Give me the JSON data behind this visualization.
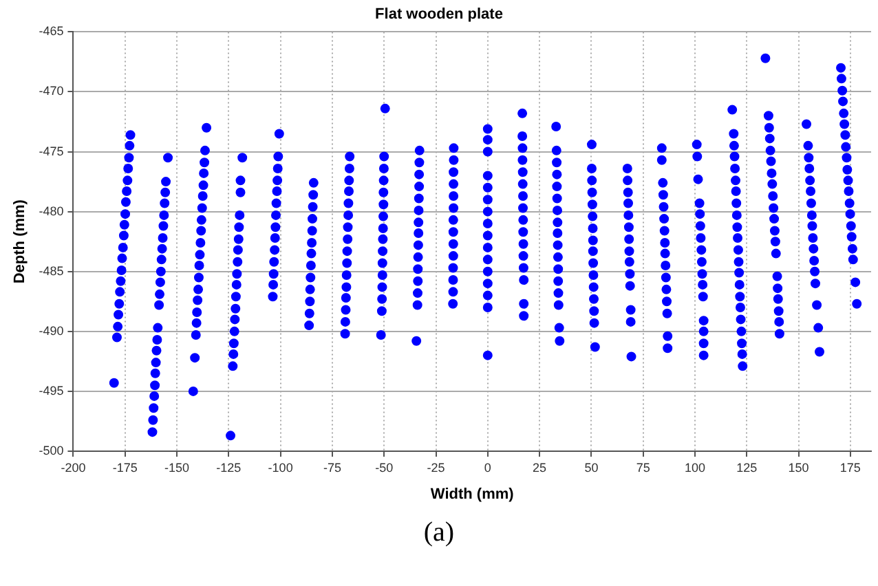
{
  "chart_data": {
    "type": "scatter",
    "title": "Flat wooden plate",
    "xlabel": "Width (mm)",
    "ylabel": "Depth (mm)",
    "annotations": [
      "(a)"
    ],
    "xlim": [
      -200,
      185
    ],
    "ylim": [
      -500,
      -465
    ],
    "xticks": [
      -200,
      -175,
      -150,
      -125,
      -100,
      -75,
      -50,
      -25,
      0,
      25,
      50,
      75,
      100,
      125,
      150,
      175
    ],
    "yticks": [
      -500,
      -495,
      -490,
      -485,
      -480,
      -475,
      -470,
      -465
    ],
    "grid": true,
    "marker": "circle",
    "series": [
      {
        "color": "#0000ff",
        "x": [
          -172.4,
          -172.8,
          -173.1,
          -173.5,
          -173.8,
          -174.2,
          -174.6,
          -174.9,
          -175.3,
          -175.6,
          -176.0,
          -176.4,
          -176.7,
          -177.1,
          -177.5,
          -177.8,
          -178.2,
          -178.5,
          -178.9,
          -180.3,
          -154.3,
          -155.3,
          -155.6,
          -155.9,
          -156.2,
          -156.5,
          -156.8,
          -157.1,
          -157.4,
          -157.7,
          -158.0,
          -158.3,
          -158.6,
          -159.2,
          -159.5,
          -159.8,
          -160.1,
          -160.4,
          -160.6,
          -160.9,
          -161.2,
          -161.5,
          -161.8,
          -135.7,
          -136.4,
          -136.7,
          -137.0,
          -137.2,
          -137.5,
          -137.8,
          -138.1,
          -138.3,
          -138.6,
          -138.9,
          -139.2,
          -139.4,
          -139.7,
          -140.0,
          -140.3,
          -140.5,
          -140.8,
          -141.3,
          -142.1,
          -118.4,
          -119.3,
          -119.3,
          -119.7,
          -120.0,
          -120.2,
          -120.5,
          -120.7,
          -121.0,
          -121.2,
          -121.5,
          -121.7,
          -122.0,
          -122.2,
          -122.5,
          -122.7,
          -123.0,
          -124.1,
          -100.6,
          -101.1,
          -101.3,
          -101.5,
          -101.7,
          -102.0,
          -102.2,
          -102.4,
          -102.6,
          -102.8,
          -103.1,
          -103.3,
          -103.5,
          -103.7,
          -84.0,
          -84.2,
          -84.4,
          -84.6,
          -84.7,
          -84.9,
          -85.1,
          -85.3,
          -85.5,
          -85.7,
          -85.8,
          -86.0,
          -86.2,
          -66.6,
          -66.7,
          -66.9,
          -67.0,
          -67.2,
          -67.3,
          -67.5,
          -67.6,
          -67.8,
          -67.9,
          -68.1,
          -68.2,
          -68.4,
          -68.5,
          -68.7,
          -68.8,
          -49.5,
          -50.0,
          -50.1,
          -50.2,
          -50.3,
          -50.3,
          -50.4,
          -50.5,
          -50.6,
          -50.7,
          -50.8,
          -50.8,
          -50.9,
          -51.0,
          -51.1,
          -51.5,
          -32.9,
          -33.0,
          -33.1,
          -33.1,
          -33.2,
          -33.3,
          -33.4,
          -33.4,
          -33.5,
          -33.6,
          -33.7,
          -33.7,
          -33.8,
          -33.9,
          -34.4,
          -16.4,
          -16.4,
          -16.5,
          -16.5,
          -16.5,
          -16.5,
          -16.6,
          -16.6,
          -16.6,
          -16.6,
          -16.7,
          -16.7,
          -16.7,
          -16.8,
          0,
          0,
          0,
          0,
          0,
          0,
          0,
          0,
          0,
          0,
          0,
          0,
          0,
          0,
          0,
          0,
          16.7,
          16.7,
          16.8,
          16.8,
          16.9,
          16.9,
          17.0,
          17.0,
          17.1,
          17.1,
          17.2,
          17.2,
          17.3,
          17.4,
          17.4,
          17.4,
          33.0,
          33.2,
          33.3,
          33.4,
          33.4,
          33.5,
          33.6,
          33.7,
          33.7,
          33.8,
          33.9,
          34.0,
          34.0,
          34.1,
          34.2,
          34.5,
          34.7,
          50.2,
          50.2,
          50.3,
          50.4,
          50.5,
          50.6,
          50.7,
          50.8,
          50.8,
          50.9,
          51.0,
          51.1,
          51.2,
          51.3,
          51.4,
          51.8,
          67.4,
          67.5,
          67.7,
          67.8,
          67.9,
          68.1,
          68.2,
          68.3,
          68.4,
          68.6,
          68.7,
          69.0,
          69.0,
          69.3,
          84.0,
          84.0,
          84.5,
          84.7,
          84.9,
          85.1,
          85.3,
          85.5,
          85.6,
          85.8,
          86.0,
          86.2,
          86.4,
          86.6,
          86.8,
          86.8,
          100.9,
          101.1,
          101.5,
          102.2,
          102.4,
          102.6,
          102.8,
          103.1,
          103.3,
          103.5,
          103.7,
          103.9,
          104.2,
          104.2,
          104.2,
          104.2,
          118.0,
          118.7,
          118.9,
          119.1,
          119.3,
          119.6,
          119.8,
          120.0,
          120.2,
          120.4,
          120.6,
          120.9,
          121.1,
          121.3,
          121.5,
          121.7,
          121.9,
          122.1,
          122.4,
          122.6,
          122.8,
          123.0,
          134.0,
          135.5,
          135.8,
          136.1,
          136.4,
          136.7,
          137.0,
          137.3,
          137.6,
          137.9,
          138.2,
          138.5,
          138.8,
          139.1,
          139.7,
          139.9,
          140.1,
          140.4,
          140.6,
          140.8,
          153.8,
          154.6,
          154.9,
          155.2,
          155.5,
          155.8,
          156.1,
          156.4,
          156.6,
          156.9,
          157.2,
          157.5,
          157.8,
          158.1,
          158.8,
          159.5,
          160.1,
          170.4,
          170.7,
          171.1,
          171.4,
          171.8,
          172.1,
          172.5,
          172.8,
          173.2,
          173.5,
          173.9,
          174.2,
          174.6,
          174.9,
          175.3,
          175.6,
          176.0,
          176.3,
          177.4,
          178.1
        ],
        "values": [
          -473.6,
          -474.5,
          -475.5,
          -476.4,
          -477.4,
          -478.3,
          -479.2,
          -480.2,
          -481.1,
          -482.0,
          -483.0,
          -483.9,
          -484.9,
          -485.8,
          -486.7,
          -487.7,
          -488.6,
          -489.6,
          -490.5,
          -494.3,
          -475.5,
          -477.5,
          -478.4,
          -479.3,
          -480.3,
          -481.2,
          -482.2,
          -483.1,
          -484.0,
          -485.0,
          -485.9,
          -486.9,
          -487.8,
          -489.7,
          -490.7,
          -491.6,
          -492.6,
          -493.5,
          -494.5,
          -495.4,
          -496.4,
          -497.4,
          -498.4,
          -473.0,
          -474.9,
          -475.9,
          -476.8,
          -477.8,
          -478.7,
          -479.7,
          -480.7,
          -481.6,
          -482.6,
          -483.6,
          -484.5,
          -485.5,
          -486.5,
          -487.4,
          -488.4,
          -489.3,
          -490.3,
          -492.2,
          -495.0,
          -475.5,
          -477.4,
          -478.4,
          -480.3,
          -481.3,
          -482.3,
          -483.2,
          -484.2,
          -485.2,
          -486.1,
          -487.1,
          -488.1,
          -489.0,
          -490.0,
          -491.0,
          -491.9,
          -492.9,
          -498.7,
          -473.5,
          -475.4,
          -476.4,
          -477.4,
          -478.3,
          -479.3,
          -480.3,
          -481.3,
          -482.2,
          -483.2,
          -484.2,
          -485.2,
          -486.1,
          -487.1,
          -477.6,
          -478.6,
          -479.6,
          -480.6,
          -481.6,
          -482.6,
          -483.5,
          -484.5,
          -485.5,
          -486.5,
          -487.5,
          -488.5,
          -489.5,
          -475.4,
          -476.4,
          -477.4,
          -478.3,
          -479.3,
          -480.3,
          -481.3,
          -482.3,
          -483.3,
          -484.3,
          -485.3,
          -486.3,
          -487.2,
          -488.2,
          -489.2,
          -490.2,
          -471.4,
          -475.4,
          -476.4,
          -477.4,
          -478.4,
          -479.4,
          -480.4,
          -481.4,
          -482.3,
          -483.3,
          -484.3,
          -485.3,
          -486.3,
          -487.3,
          -488.3,
          -490.3,
          -474.9,
          -475.9,
          -476.9,
          -477.9,
          -478.9,
          -479.9,
          -480.9,
          -481.8,
          -482.8,
          -483.8,
          -484.8,
          -485.8,
          -486.8,
          -487.8,
          -490.8,
          -474.7,
          -475.7,
          -476.7,
          -477.7,
          -478.7,
          -479.7,
          -480.7,
          -481.7,
          -482.7,
          -483.7,
          -484.7,
          -485.7,
          -486.7,
          -487.7,
          -473.1,
          -474.0,
          -475.0,
          -477.0,
          -478.0,
          -479.0,
          -480.0,
          -481.0,
          -482.0,
          -483.0,
          -484.0,
          -485.0,
          -486.0,
          -487.0,
          -488.0,
          -492.0,
          -471.8,
          -473.7,
          -474.7,
          -475.7,
          -476.7,
          -477.7,
          -478.7,
          -479.7,
          -480.7,
          -481.7,
          -482.7,
          -483.7,
          -484.7,
          -485.7,
          -487.7,
          -488.7,
          -472.9,
          -474.9,
          -475.9,
          -476.9,
          -477.9,
          -478.9,
          -479.9,
          -480.9,
          -481.8,
          -482.8,
          -483.8,
          -484.8,
          -485.8,
          -486.8,
          -487.8,
          -489.7,
          -490.8,
          -474.4,
          -476.4,
          -477.4,
          -478.4,
          -479.4,
          -480.4,
          -481.4,
          -482.4,
          -483.3,
          -484.3,
          -485.3,
          -486.3,
          -487.3,
          -488.3,
          -489.3,
          -491.3,
          -476.4,
          -477.4,
          -478.4,
          -479.3,
          -480.3,
          -481.3,
          -482.3,
          -483.3,
          -484.2,
          -485.2,
          -486.2,
          -488.2,
          -489.2,
          -492.1,
          -474.7,
          -475.7,
          -477.6,
          -478.6,
          -479.6,
          -480.6,
          -481.6,
          -482.6,
          -483.5,
          -484.5,
          -485.5,
          -486.5,
          -487.5,
          -488.5,
          -490.4,
          -491.4,
          -474.4,
          -475.4,
          -477.3,
          -479.3,
          -480.2,
          -481.2,
          -482.2,
          -483.2,
          -484.2,
          -485.2,
          -486.1,
          -487.1,
          -489.1,
          -490.0,
          -491.0,
          -492.0,
          -471.5,
          -473.5,
          -474.5,
          -475.4,
          -476.4,
          -477.4,
          -478.3,
          -479.3,
          -480.3,
          -481.3,
          -482.2,
          -483.2,
          -484.2,
          -485.1,
          -486.1,
          -487.1,
          -488.0,
          -489.0,
          -490.0,
          -491.0,
          -491.9,
          -492.9,
          -467.2,
          -472.0,
          -473.0,
          -473.9,
          -474.9,
          -475.8,
          -476.8,
          -477.7,
          -478.7,
          -479.7,
          -480.6,
          -481.6,
          -482.5,
          -483.5,
          -485.4,
          -486.4,
          -487.3,
          -488.3,
          -489.2,
          -490.2,
          -472.7,
          -474.5,
          -475.5,
          -476.4,
          -477.4,
          -478.3,
          -479.3,
          -480.3,
          -481.2,
          -482.2,
          -483.1,
          -484.1,
          -485.0,
          -486.0,
          -487.8,
          -489.7,
          -491.7,
          -468.0,
          -468.9,
          -469.9,
          -470.8,
          -471.8,
          -472.7,
          -473.6,
          -474.6,
          -475.5,
          -476.5,
          -477.4,
          -478.3,
          -479.3,
          -480.2,
          -481.2,
          -482.1,
          -483.1,
          -484.0,
          -485.9,
          -487.7
        ]
      }
    ]
  }
}
